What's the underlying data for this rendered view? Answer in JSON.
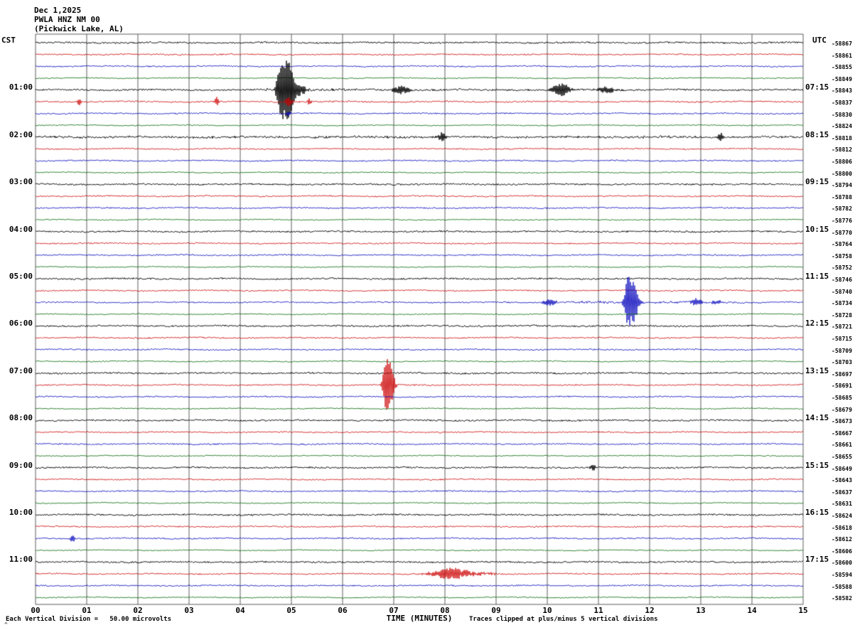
{
  "header": {
    "date": "Dec 1,2025",
    "station": "PWLA HNZ NM 00",
    "location": "(Pickwick Lake, AL)"
  },
  "axes": {
    "left_timezone": "CST",
    "right_timezone": "UTC",
    "x_title": "TIME (MINUTES)",
    "x_ticks": [
      "00",
      "01",
      "02",
      "03",
      "04",
      "05",
      "06",
      "07",
      "08",
      "09",
      "10",
      "11",
      "12",
      "13",
      "14",
      "15"
    ]
  },
  "footer": {
    "scale_note": "Each Vertical Division =   50.00 microvolts",
    "clip_note": "Traces clipped at plus/minus 5 vertical divisions",
    "corner_mark": "^"
  },
  "chart_data": {
    "type": "line",
    "subtype": "helicorder-seismogram",
    "title": "PWLA HNZ NM 00 (Pickwick Lake, AL) Dec 1,2025",
    "xlabel": "TIME (MINUTES)",
    "x_range_minutes": [
      0,
      15
    ],
    "rows": 48,
    "minutes_per_row": 15,
    "row_start_time_cst": "00:00",
    "grid": true,
    "trace_colors": [
      "#000000",
      "#cc0000",
      "#0000bb",
      "#006600"
    ],
    "base_noise": [
      1.1,
      0.9,
      0.9,
      0.7
    ],
    "clip_divisions": 5,
    "microvolts_per_division": 50.0,
    "left_labels": [
      {
        "row": 4,
        "label": "01:00"
      },
      {
        "row": 8,
        "label": "02:00"
      },
      {
        "row": 12,
        "label": "03:00"
      },
      {
        "row": 16,
        "label": "04:00"
      },
      {
        "row": 20,
        "label": "05:00"
      },
      {
        "row": 24,
        "label": "06:00"
      },
      {
        "row": 28,
        "label": "07:00"
      },
      {
        "row": 32,
        "label": "08:00"
      },
      {
        "row": 36,
        "label": "09:00"
      },
      {
        "row": 40,
        "label": "10:00"
      },
      {
        "row": 44,
        "label": "11:00"
      }
    ],
    "right_labels": [
      {
        "row": 4,
        "label": "07:15"
      },
      {
        "row": 8,
        "label": "08:15"
      },
      {
        "row": 12,
        "label": "09:15"
      },
      {
        "row": 16,
        "label": "10:15"
      },
      {
        "row": 20,
        "label": "11:15"
      },
      {
        "row": 24,
        "label": "12:15"
      },
      {
        "row": 28,
        "label": "13:15"
      },
      {
        "row": 32,
        "label": "14:15"
      },
      {
        "row": 36,
        "label": "15:15"
      },
      {
        "row": 40,
        "label": "16:15"
      },
      {
        "row": 44,
        "label": "17:15"
      }
    ],
    "right_values": [
      "-58867",
      "-58861",
      "-58855",
      "-58849",
      "-58843",
      "-58837",
      "-58830",
      "-58824",
      "-58818",
      "-58812",
      "-58806",
      "-58800",
      "-58794",
      "-58788",
      "-58782",
      "-58776",
      "-58770",
      "-58764",
      "-58758",
      "-58752",
      "-58746",
      "-58740",
      "-58734",
      "-58728",
      "-58721",
      "-58715",
      "-58709",
      "-58703",
      "-58697",
      "-58691",
      "-58685",
      "-58679",
      "-58673",
      "-58667",
      "-58661",
      "-58655",
      "-58649",
      "-58643",
      "-58637",
      "-58631",
      "-58624",
      "-58618",
      "-58612",
      "-58606",
      "-58600",
      "-58594",
      "-58588",
      "-58582"
    ],
    "bursts": [
      {
        "row": 4,
        "center": 4.78,
        "sigma": 0.05,
        "amp": 30
      },
      {
        "row": 4,
        "center": 4.88,
        "sigma": 0.07,
        "amp": 40
      },
      {
        "row": 4,
        "center": 4.98,
        "sigma": 0.05,
        "amp": 24
      },
      {
        "row": 4,
        "center": 5.12,
        "sigma": 0.1,
        "amp": 9
      },
      {
        "row": 4,
        "center": 7.15,
        "sigma": 0.12,
        "amp": 6
      },
      {
        "row": 4,
        "center": 10.22,
        "sigma": 0.1,
        "amp": 7
      },
      {
        "row": 4,
        "center": 10.35,
        "sigma": 0.08,
        "amp": 5
      },
      {
        "row": 4,
        "center": 11.15,
        "sigma": 0.15,
        "amp": 4
      },
      {
        "row": 5,
        "center": 0.85,
        "sigma": 0.03,
        "amp": 4
      },
      {
        "row": 5,
        "center": 3.55,
        "sigma": 0.03,
        "amp": 7
      },
      {
        "row": 5,
        "center": 4.95,
        "sigma": 0.04,
        "amp": 9
      },
      {
        "row": 5,
        "center": 5.35,
        "sigma": 0.03,
        "amp": 5
      },
      {
        "row": 6,
        "center": 4.95,
        "sigma": 0.03,
        "amp": 4
      },
      {
        "row": 8,
        "center": 7.95,
        "sigma": 0.05,
        "amp": 7
      },
      {
        "row": 8,
        "center": 13.38,
        "sigma": 0.04,
        "amp": 6
      },
      {
        "row": 22,
        "center": 11.58,
        "sigma": 0.05,
        "amp": 34
      },
      {
        "row": 22,
        "center": 11.7,
        "sigma": 0.06,
        "amp": 28
      },
      {
        "row": 22,
        "center": 10.05,
        "sigma": 0.08,
        "amp": 5
      },
      {
        "row": 22,
        "center": 12.9,
        "sigma": 0.1,
        "amp": 4
      },
      {
        "row": 22,
        "center": 13.3,
        "sigma": 0.08,
        "amp": 3
      },
      {
        "row": 29,
        "center": 6.82,
        "sigma": 0.04,
        "amp": 16
      },
      {
        "row": 29,
        "center": 6.88,
        "sigma": 0.05,
        "amp": 32
      },
      {
        "row": 29,
        "center": 6.95,
        "sigma": 0.05,
        "amp": 20
      },
      {
        "row": 36,
        "center": 10.9,
        "sigma": 0.04,
        "amp": 4
      },
      {
        "row": 42,
        "center": 0.72,
        "sigma": 0.04,
        "amp": 5
      },
      {
        "row": 45,
        "center": 8.05,
        "sigma": 0.15,
        "amp": 4
      },
      {
        "row": 45,
        "center": 8.2,
        "sigma": 0.35,
        "amp": 5
      }
    ],
    "noise_bands": [
      {
        "row": 4,
        "from": 4.5,
        "to": 13.5,
        "amp": 1.6,
        "decay": 3.0,
        "origin": 4.9
      },
      {
        "row": 5,
        "from": 4.8,
        "to": 9.0,
        "amp": 0.8,
        "decay": 2.0,
        "origin": 4.9
      },
      {
        "row": 8,
        "from": 0.0,
        "to": 15.0,
        "amp": 0.9
      },
      {
        "row": 22,
        "from": 9.8,
        "to": 14.2,
        "amp": 1.6,
        "decay": 2.5,
        "origin": 11.65
      },
      {
        "row": 29,
        "from": 6.8,
        "to": 7.6,
        "amp": 1.5,
        "decay": 0.5,
        "origin": 6.9
      },
      {
        "row": 45,
        "from": 7.6,
        "to": 9.0,
        "amp": 1.2
      }
    ]
  }
}
